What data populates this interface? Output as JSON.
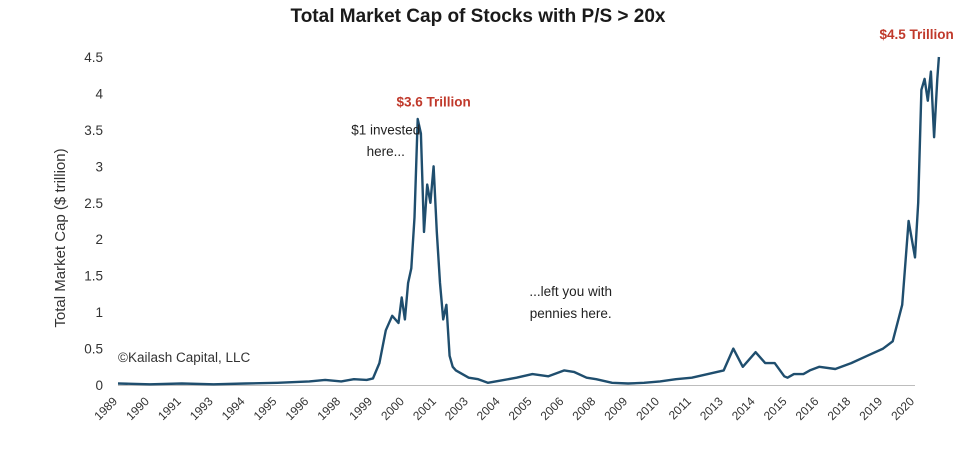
{
  "chart_data": {
    "type": "line",
    "title": "Total Market Cap of Stocks with P/S > 20x",
    "xlabel": "",
    "ylabel": "Total Market Cap ($ trillion)",
    "ylim": [
      0,
      4.5
    ],
    "yticks": [
      "0",
      "0.5",
      "1",
      "1.5",
      "2",
      "2.5",
      "3",
      "3.5",
      "4",
      "4.5"
    ],
    "xticks": [
      "1989",
      "1990",
      "1991",
      "1993",
      "1994",
      "1995",
      "1996",
      "1998",
      "1999",
      "2000",
      "2001",
      "2003",
      "2004",
      "2005",
      "2006",
      "2008",
      "2009",
      "2010",
      "2011",
      "2013",
      "2014",
      "2015",
      "2016",
      "2018",
      "2019",
      "2020"
    ],
    "grid": false,
    "legend": "none",
    "line_color": "#1f4e6e",
    "series": [
      {
        "x": [
          0,
          1,
          2,
          3,
          4,
          5,
          6,
          6.5,
          7,
          7.4,
          7.8,
          8.0,
          8.2,
          8.4,
          8.6,
          8.8,
          8.9,
          9.0,
          9.1,
          9.2,
          9.3,
          9.4,
          9.5,
          9.6,
          9.7,
          9.8,
          9.9,
          10.0,
          10.1,
          10.2,
          10.3,
          10.4,
          10.5,
          10.6,
          10.8,
          11.0,
          11.3,
          11.6,
          12.0,
          12.5,
          13.0,
          13.5,
          14.0,
          14.3,
          14.7,
          15.0,
          15.5,
          16.0,
          16.5,
          17.0,
          17.5,
          18.0,
          18.5,
          19.0,
          19.3,
          19.6,
          20.0,
          20.3,
          20.6,
          20.9,
          21.0,
          21.2,
          21.5,
          21.7,
          22.0,
          22.5,
          23.0,
          23.5,
          24.0,
          24.3,
          24.6,
          24.8,
          25.0,
          25.1,
          25.2,
          25.3,
          25.4,
          25.5,
          25.6,
          25.7,
          25.75
        ],
        "values": [
          0.02,
          0.01,
          0.02,
          0.01,
          0.02,
          0.03,
          0.05,
          0.07,
          0.05,
          0.08,
          0.07,
          0.09,
          0.3,
          0.75,
          0.95,
          0.85,
          1.2,
          0.9,
          1.4,
          1.6,
          2.3,
          3.65,
          3.45,
          2.1,
          2.75,
          2.5,
          3.0,
          2.1,
          1.4,
          0.9,
          1.1,
          0.4,
          0.25,
          0.2,
          0.15,
          0.1,
          0.08,
          0.03,
          0.06,
          0.1,
          0.15,
          0.12,
          0.2,
          0.18,
          0.1,
          0.08,
          0.03,
          0.02,
          0.03,
          0.05,
          0.08,
          0.1,
          0.15,
          0.2,
          0.5,
          0.25,
          0.45,
          0.3,
          0.3,
          0.12,
          0.1,
          0.15,
          0.15,
          0.2,
          0.25,
          0.22,
          0.3,
          0.4,
          0.5,
          0.6,
          1.1,
          2.25,
          1.75,
          2.5,
          4.05,
          4.2,
          3.9,
          4.3,
          3.4,
          4.2,
          4.5
        ]
      }
    ],
    "annotations": [
      {
        "text": "$3.6 Trillion",
        "style": "peak",
        "x": 9.9,
        "y": 3.82
      },
      {
        "text": "$1 invested",
        "style": "note",
        "x": 8.4,
        "y": 3.44
      },
      {
        "text": "here...",
        "style": "note",
        "x": 8.4,
        "y": 3.14
      },
      {
        "text": "...left you with",
        "style": "note",
        "x": 14.2,
        "y": 1.22
      },
      {
        "text": "pennies here.",
        "style": "note",
        "x": 14.2,
        "y": 0.92
      },
      {
        "text": "$4.5 Trillion",
        "style": "peak",
        "x": 25.05,
        "y": 4.75
      }
    ],
    "credit": "©Kailash Capital, LLC"
  }
}
